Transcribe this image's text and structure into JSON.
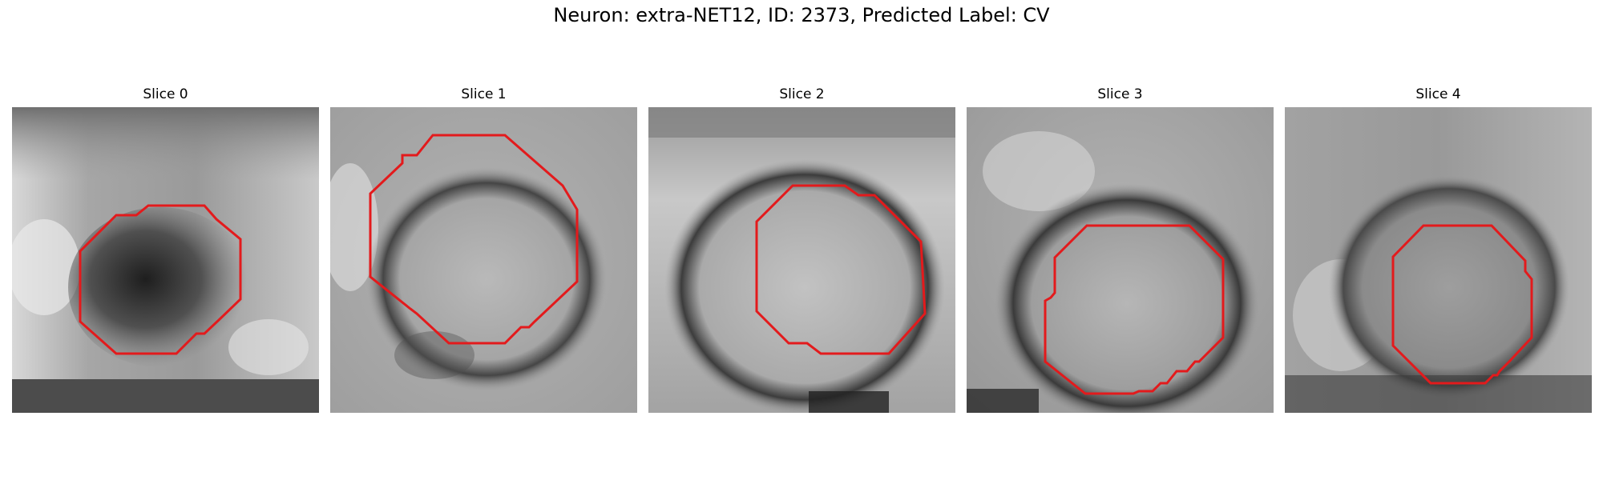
{
  "figure": {
    "title": "Neuron: extra-NET12, ID: 2373, Predicted Label: CV",
    "overlay_color": "#e31a1c"
  },
  "panels": [
    {
      "title": "Slice 0"
    },
    {
      "title": "Slice 1"
    },
    {
      "title": "Slice 2"
    },
    {
      "title": "Slice 3"
    },
    {
      "title": "Slice 4"
    }
  ]
}
